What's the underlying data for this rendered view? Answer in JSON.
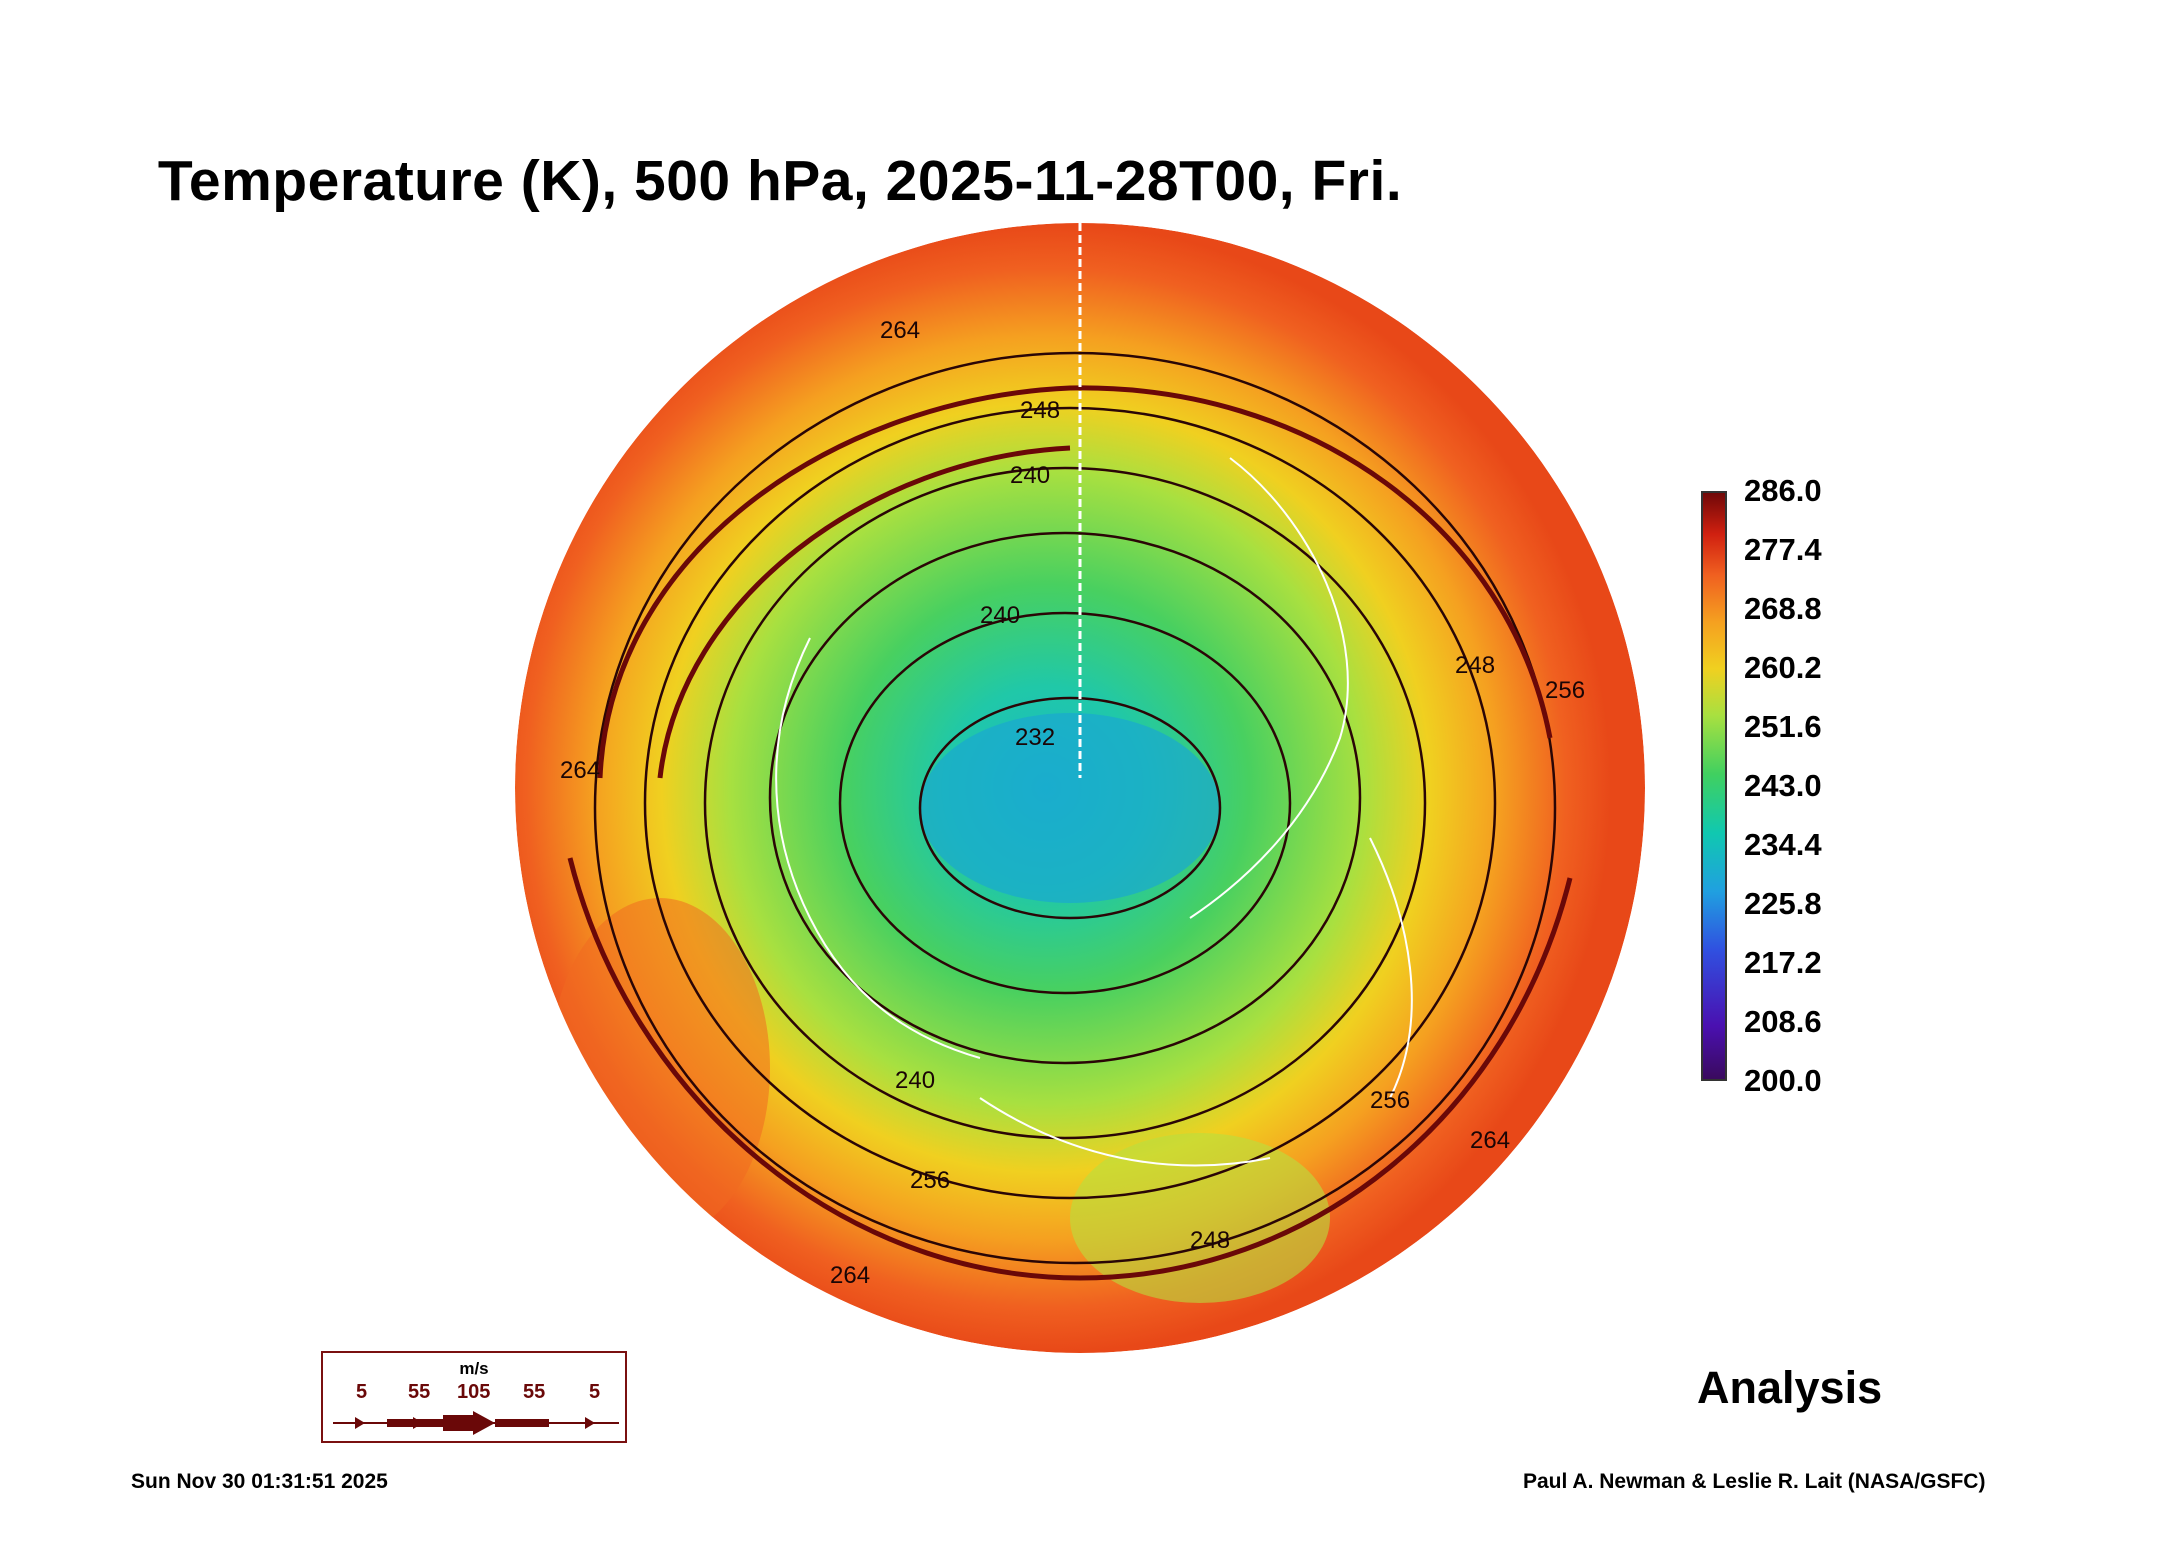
{
  "title": "Temperature (K), 500 hPa, 2025-11-28T00, Fri.",
  "colorbar": {
    "ticks": [
      "286.0",
      "277.4",
      "268.8",
      "260.2",
      "251.6",
      "243.0",
      "234.4",
      "225.8",
      "217.2",
      "208.6",
      "200.0"
    ],
    "min": 200.0,
    "max": 286.0,
    "colors": [
      "#3a0a5e",
      "#4a10b0",
      "#3050e0",
      "#20a0e0",
      "#10c8b0",
      "#40d060",
      "#a8e040",
      "#f0d020",
      "#f5a020",
      "#f06020",
      "#d02010",
      "#700808"
    ]
  },
  "contour_labels": [
    "264",
    "248",
    "240",
    "240",
    "232",
    "264",
    "248",
    "256",
    "240",
    "256",
    "264",
    "256",
    "248",
    "264"
  ],
  "wind_legend": {
    "unit": "m/s",
    "values": [
      "5",
      "55",
      "105",
      "55",
      "5"
    ]
  },
  "analysis_label": "Analysis",
  "timestamp": "Sun Nov 30 01:31:51 2025",
  "credit": "Paul A. Newman & Leslie R. Lait (NASA/GSFC)"
}
